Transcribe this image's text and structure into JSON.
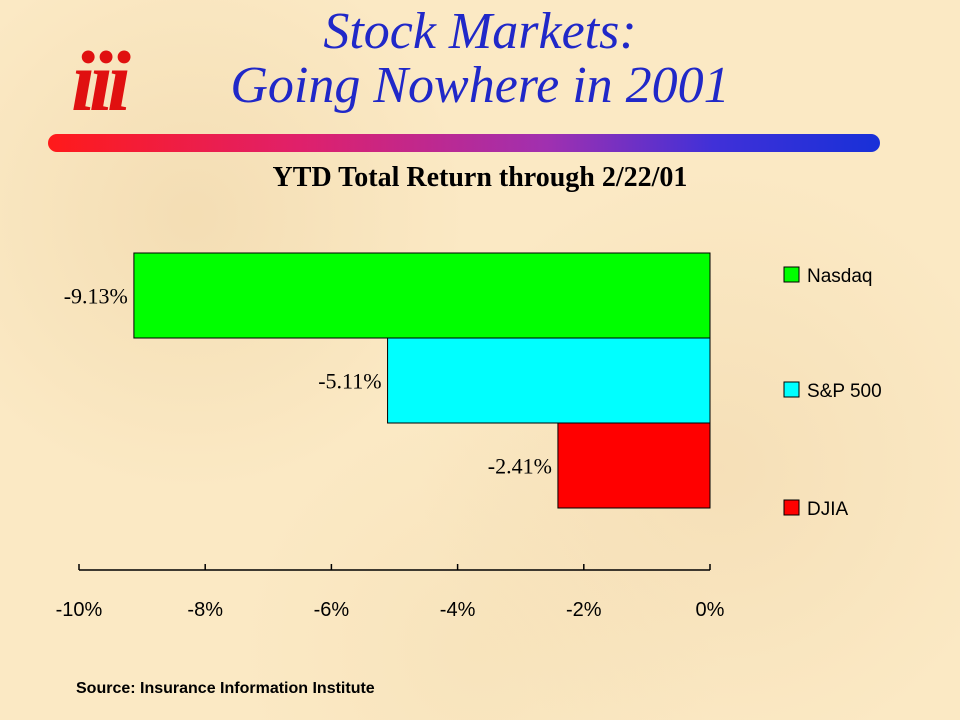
{
  "slide": {
    "title_line1": "Stock Markets:",
    "title_line2": "Going Nowhere in 2001",
    "logo_text": "iii",
    "title_color": "#2028c8",
    "source": "Source:  Insurance Information Institute"
  },
  "chart_data": {
    "type": "bar",
    "orientation": "horizontal",
    "title": "YTD Total Return through 2/22/01",
    "xlabel": "",
    "ylabel": "",
    "xlim": [
      -10,
      0
    ],
    "x_ticks": [
      -10,
      -8,
      -6,
      -4,
      -2,
      0
    ],
    "x_tick_labels": [
      "-10%",
      "-8%",
      "-6%",
      "-4%",
      "-2%",
      "0%"
    ],
    "grid": false,
    "legend_position": "right",
    "series": [
      {
        "name": "Nasdaq",
        "value": -9.13,
        "label": "-9.13%",
        "color": "#00ff00"
      },
      {
        "name": "S&P 500",
        "value": -5.11,
        "label": "-5.11%",
        "color": "#00ffff"
      },
      {
        "name": "DJIA",
        "value": -2.41,
        "label": "-2.41%",
        "color": "#ff0000"
      }
    ]
  }
}
